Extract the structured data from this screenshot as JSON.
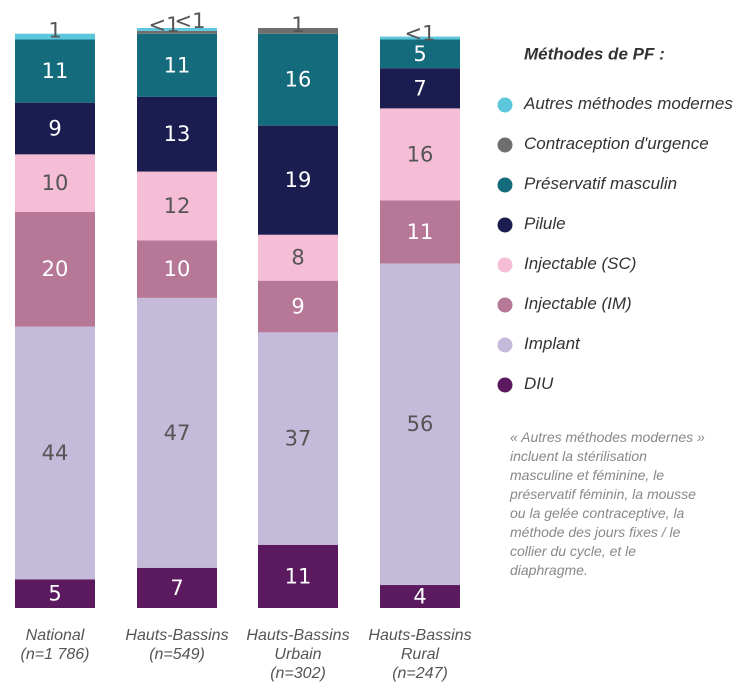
{
  "chart_data": {
    "type": "stacked_bar",
    "legend_title": "Méthodes de PF :",
    "note": "« Autres méthodes modernes » incluent la stérilisation masculine et féminine, le préservatif féminin, la mousse ou la gelée contraceptive, la méthode des jours fixes / le collier du cycle, et le diaphragme.",
    "categories": [
      "National\n(n=1 786)",
      "Hauts-Bassins\n(n=549)",
      "Hauts-Bassins\nUrbain\n(n=302)",
      "Hauts-Bassins\nRural\n(n=247)"
    ],
    "series": [
      {
        "name": "DIU",
        "color": "#5b1a5f",
        "values": [
          5,
          7,
          11,
          4
        ]
      },
      {
        "name": "Implant",
        "color": "#c4bada",
        "values": [
          44,
          47,
          37,
          56
        ]
      },
      {
        "name": "Injectable (IM)",
        "color": "#b77797",
        "values": [
          20,
          10,
          9,
          11
        ]
      },
      {
        "name": "Injectable (SC)",
        "color": "#f6bdd7",
        "values": [
          10,
          12,
          8,
          16
        ]
      },
      {
        "name": "Pilule",
        "color": "#1b1c4f",
        "values": [
          9,
          13,
          19,
          7
        ]
      },
      {
        "name": "Préservatif masculin",
        "color": "#146b7c",
        "values": [
          11,
          11,
          16,
          5
        ]
      },
      {
        "name": "Contraception d'urgence",
        "color": "#6e6e6e",
        "values": [
          null,
          0.5,
          1,
          null
        ],
        "value_labels": [
          null,
          "<1",
          "1",
          null
        ]
      },
      {
        "name": "Autres méthodes modernes",
        "color": "#5cc6dc",
        "values": [
          1,
          0.5,
          null,
          0.5
        ],
        "value_labels": [
          "1",
          "<1",
          null,
          "<1"
        ]
      }
    ]
  }
}
